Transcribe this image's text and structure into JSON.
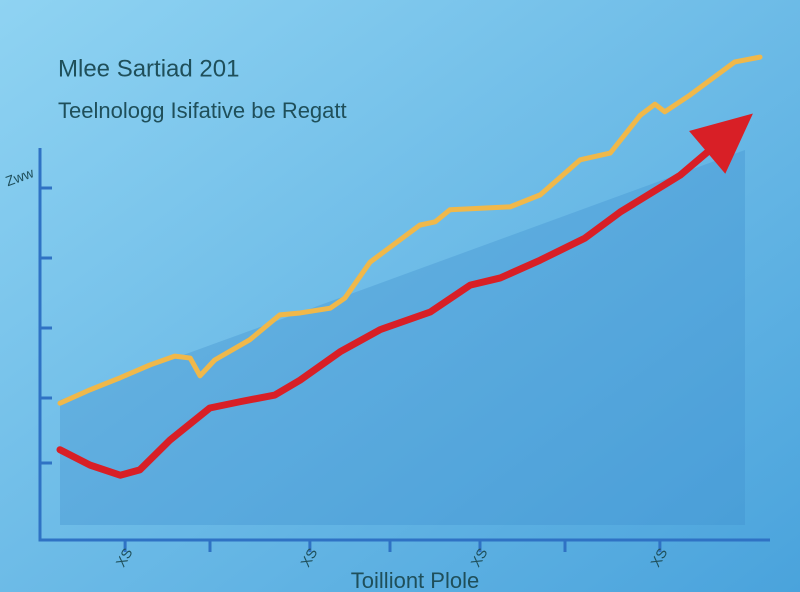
{
  "chart_data": {
    "type": "line",
    "title": "Mlee Sartiad 201",
    "subtitle": "Teelnologg Isifative be Regatt",
    "x_label": "Toilliont Plole",
    "y_label": "Zww",
    "xlim": [
      0,
      100
    ],
    "ylim": [
      0,
      105
    ],
    "xticks": [
      {
        "value": 9.3,
        "label": "XS"
      },
      {
        "value": 35.7,
        "label": "XS"
      },
      {
        "value": 60,
        "label": "XS"
      },
      {
        "value": 85.7,
        "label": "XS"
      }
    ],
    "series": [
      {
        "color": "#f0b84a",
        "x": [
          0,
          4.3,
          8.6,
          12.9,
          16.4,
          18.6,
          20,
          22.1,
          27.1,
          31.4,
          34.3,
          38.6,
          40.7,
          44.3,
          51.4,
          53.6,
          55.7,
          64.3,
          68.6,
          74.3,
          78.6,
          82.9,
          85,
          86.4,
          90,
          96.4,
          100
        ],
        "values": [
          28.5,
          31.3,
          33.8,
          36.5,
          38.3,
          37.9,
          34.2,
          37.5,
          41.7,
          46.9,
          47.3,
          48.3,
          50.4,
          57.9,
          65.6,
          66.3,
          68.8,
          69.4,
          71.9,
          79.2,
          80.6,
          88.5,
          90.8,
          89.2,
          92.7,
          99.6,
          100.6
        ]
      },
      {
        "color": "#d81f26",
        "x": [
          0,
          4.3,
          8.6,
          11.4,
          15.7,
          21.4,
          25.7,
          30.7,
          34.3,
          40,
          45.7,
          52.9,
          58.6,
          62.9,
          68.6,
          75,
          80,
          88.6,
          97.9
        ],
        "values": [
          18.8,
          15.6,
          13.5,
          14.6,
          20.8,
          27.5,
          28.8,
          30.2,
          33.3,
          39.2,
          43.8,
          47.5,
          53.1,
          54.6,
          58.3,
          62.9,
          68.3,
          76,
          87.5
        ]
      }
    ]
  }
}
